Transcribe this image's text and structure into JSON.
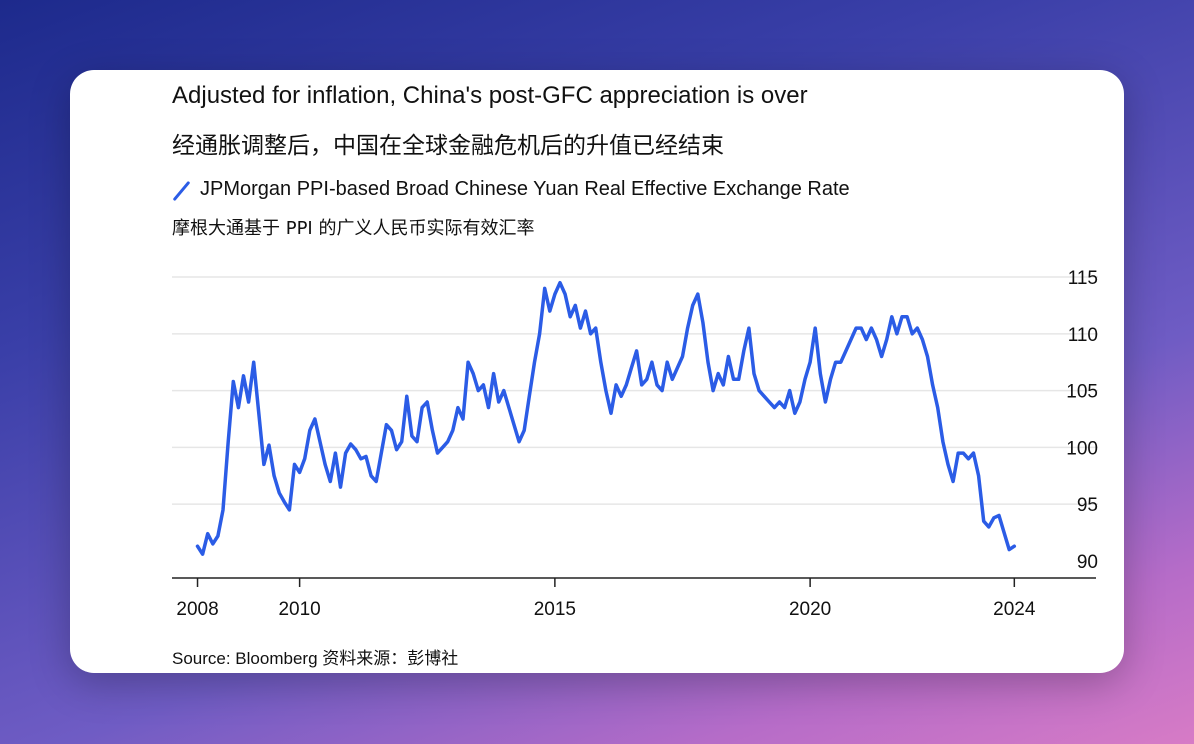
{
  "title_en": "Adjusted for inflation, China's post-GFC appreciation is over",
  "title_zh": "经通胀调整后，中国在全球金融危机后的升值已经结束",
  "source": "Source: Bloomberg 资料来源：彭博社",
  "colors": {
    "line": "#2b5ce6",
    "grid": "#e6e6e6",
    "axis": "#222222"
  },
  "chart_data": {
    "type": "line",
    "title": "Adjusted for inflation, China's post-GFC appreciation is over",
    "series": [
      {
        "name": "JPMorgan PPI-based Broad Chinese Yuan Real Effective Exchange Rate",
        "name_zh": "摩根大通基于 PPI 的广义人民币实际有效汇率",
        "x": [
          2008.0,
          2008.1,
          2008.2,
          2008.3,
          2008.4,
          2008.5,
          2008.6,
          2008.7,
          2008.8,
          2008.9,
          2009.0,
          2009.1,
          2009.2,
          2009.3,
          2009.4,
          2009.5,
          2009.6,
          2009.7,
          2009.8,
          2009.9,
          2010.0,
          2010.1,
          2010.2,
          2010.3,
          2010.4,
          2010.5,
          2010.6,
          2010.7,
          2010.8,
          2010.9,
          2011.0,
          2011.1,
          2011.2,
          2011.3,
          2011.4,
          2011.5,
          2011.6,
          2011.7,
          2011.8,
          2011.9,
          2012.0,
          2012.1,
          2012.2,
          2012.3,
          2012.4,
          2012.5,
          2012.6,
          2012.7,
          2012.8,
          2012.9,
          2013.0,
          2013.1,
          2013.2,
          2013.3,
          2013.4,
          2013.5,
          2013.6,
          2013.7,
          2013.8,
          2013.9,
          2014.0,
          2014.1,
          2014.2,
          2014.3,
          2014.4,
          2014.5,
          2014.6,
          2014.7,
          2014.8,
          2014.9,
          2015.0,
          2015.1,
          2015.2,
          2015.3,
          2015.4,
          2015.5,
          2015.6,
          2015.7,
          2015.8,
          2015.9,
          2016.0,
          2016.1,
          2016.2,
          2016.3,
          2016.4,
          2016.5,
          2016.6,
          2016.7,
          2016.8,
          2016.9,
          2017.0,
          2017.1,
          2017.2,
          2017.3,
          2017.4,
          2017.5,
          2017.6,
          2017.7,
          2017.8,
          2017.9,
          2018.0,
          2018.1,
          2018.2,
          2018.3,
          2018.4,
          2018.5,
          2018.6,
          2018.7,
          2018.8,
          2018.9,
          2019.0,
          2019.1,
          2019.2,
          2019.3,
          2019.4,
          2019.5,
          2019.6,
          2019.7,
          2019.8,
          2019.9,
          2020.0,
          2020.1,
          2020.2,
          2020.3,
          2020.4,
          2020.5,
          2020.6,
          2020.7,
          2020.8,
          2020.9,
          2021.0,
          2021.1,
          2021.2,
          2021.3,
          2021.4,
          2021.5,
          2021.6,
          2021.7,
          2021.8,
          2021.9,
          2022.0,
          2022.1,
          2022.2,
          2022.3,
          2022.4,
          2022.5,
          2022.6,
          2022.7,
          2022.8,
          2022.9,
          2023.0,
          2023.1,
          2023.2,
          2023.3,
          2023.4,
          2023.5,
          2023.6,
          2023.7,
          2023.8,
          2023.9,
          2024.0
        ],
        "values": [
          91.3,
          90.6,
          92.4,
          91.5,
          92.2,
          94.5,
          100.5,
          105.8,
          103.5,
          106.3,
          104.0,
          107.5,
          103.0,
          98.5,
          100.2,
          97.5,
          96.0,
          95.2,
          94.5,
          98.5,
          97.8,
          99.0,
          101.5,
          102.5,
          100.5,
          98.5,
          97.0,
          99.5,
          96.5,
          99.5,
          100.3,
          99.8,
          99.0,
          99.2,
          97.5,
          97.0,
          99.5,
          102.0,
          101.5,
          99.8,
          100.5,
          104.5,
          101.0,
          100.5,
          103.5,
          104.0,
          101.5,
          99.5,
          100.0,
          100.5,
          101.5,
          103.5,
          102.5,
          107.5,
          106.5,
          105.0,
          105.5,
          103.5,
          106.5,
          104.0,
          105.0,
          103.5,
          102.0,
          100.5,
          101.5,
          104.5,
          107.5,
          110.0,
          114.0,
          112.0,
          113.5,
          114.5,
          113.5,
          111.5,
          112.5,
          110.5,
          112.0,
          110.0,
          110.5,
          107.5,
          105.0,
          103.0,
          105.5,
          104.5,
          105.5,
          107.0,
          108.5,
          105.5,
          106.0,
          107.5,
          105.5,
          105.0,
          107.5,
          106.0,
          107.0,
          108.0,
          110.5,
          112.5,
          113.5,
          111.0,
          107.5,
          105.0,
          106.5,
          105.5,
          108.0,
          106.0,
          106.0,
          108.5,
          110.5,
          106.5,
          105.0,
          104.5,
          104.0,
          103.5,
          104.0,
          103.5,
          105.0,
          103.0,
          104.0,
          106.0,
          107.5,
          110.5,
          106.5,
          104.0,
          106.0,
          107.5,
          107.5,
          108.5,
          109.5,
          110.5,
          110.5,
          109.5,
          110.5,
          109.5,
          108.0,
          109.5,
          111.5,
          110.0,
          111.5,
          111.5,
          110.0,
          110.5,
          109.5,
          108.0,
          105.5,
          103.5,
          100.5,
          98.5,
          97.0,
          99.5,
          99.5,
          99.0,
          99.5,
          97.5,
          93.5,
          93.0,
          93.8,
          94.0,
          92.5,
          91.0,
          91.3
        ]
      }
    ],
    "x_ticks": [
      2008,
      2010,
      2015,
      2020,
      2024
    ],
    "y_ticks": [
      90,
      95,
      100,
      105,
      110,
      115
    ],
    "xlim": [
      2007.5,
      2025.6
    ],
    "ylim": [
      88.5,
      116.5
    ],
    "xlabel": "",
    "ylabel": "",
    "grid": true,
    "y_axis_side": "right"
  }
}
